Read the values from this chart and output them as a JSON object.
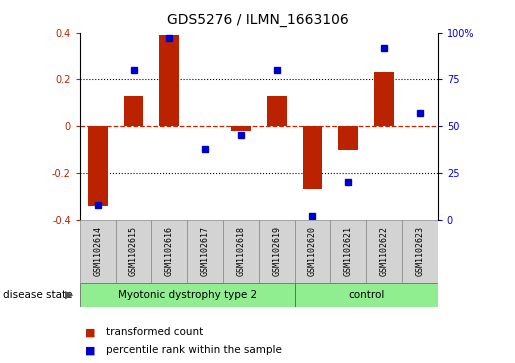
{
  "title": "GDS5276 / ILMN_1663106",
  "samples": [
    "GSM1102614",
    "GSM1102615",
    "GSM1102616",
    "GSM1102617",
    "GSM1102618",
    "GSM1102619",
    "GSM1102620",
    "GSM1102621",
    "GSM1102622",
    "GSM1102623"
  ],
  "transformed_count": [
    -0.34,
    0.13,
    0.39,
    0.0,
    -0.02,
    0.13,
    -0.27,
    -0.1,
    0.23,
    0.0
  ],
  "percentile_rank": [
    8,
    80,
    97,
    38,
    45,
    80,
    2,
    20,
    92,
    57
  ],
  "groups": [
    {
      "label": "Myotonic dystrophy type 2",
      "start": 0,
      "end": 6,
      "color": "#90EE90"
    },
    {
      "label": "control",
      "start": 6,
      "end": 10,
      "color": "#90EE90"
    }
  ],
  "ylim_left": [
    -0.4,
    0.4
  ],
  "ylim_right": [
    0,
    100
  ],
  "yticks_left": [
    -0.4,
    -0.2,
    0.0,
    0.2,
    0.4
  ],
  "yticks_right": [
    0,
    25,
    50,
    75,
    100
  ],
  "bar_color": "#BB2200",
  "dot_color": "#0000CC",
  "hline_color": "#CC2200",
  "dotted_color": "#000000",
  "disease_state_label": "disease state",
  "legend_bar": "transformed count",
  "legend_dot": "percentile rank within the sample",
  "bar_width": 0.55,
  "sample_box_color": "#D3D3D3",
  "spine_color": "#000000"
}
